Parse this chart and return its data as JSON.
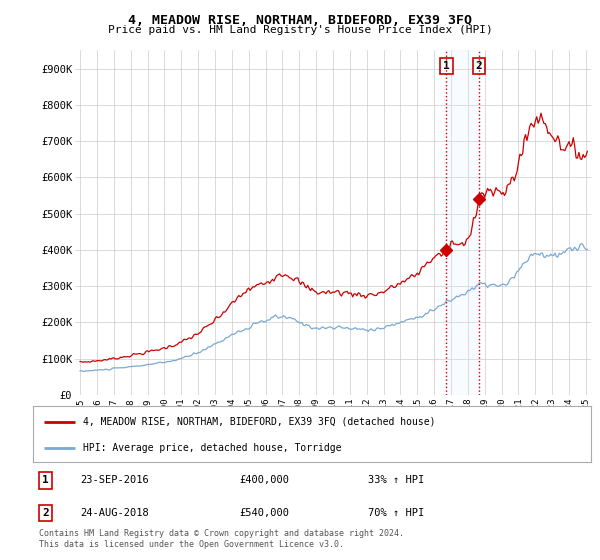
{
  "title": "4, MEADOW RISE, NORTHAM, BIDEFORD, EX39 3FQ",
  "subtitle": "Price paid vs. HM Land Registry's House Price Index (HPI)",
  "ylim": [
    0,
    950000
  ],
  "yticks": [
    0,
    100000,
    200000,
    300000,
    400000,
    500000,
    600000,
    700000,
    800000,
    900000
  ],
  "ytick_labels": [
    "£0",
    "£100K",
    "£200K",
    "£300K",
    "£400K",
    "£500K",
    "£600K",
    "£700K",
    "£800K",
    "£900K"
  ],
  "xlim_start": 1994.7,
  "xlim_end": 2025.3,
  "xticks": [
    1995,
    1996,
    1997,
    1998,
    1999,
    2000,
    2001,
    2002,
    2003,
    2004,
    2005,
    2006,
    2007,
    2008,
    2009,
    2010,
    2011,
    2012,
    2013,
    2014,
    2015,
    2016,
    2017,
    2018,
    2019,
    2020,
    2021,
    2022,
    2023,
    2024,
    2025
  ],
  "hpi_color": "#7aaad4",
  "price_color": "#cc0000",
  "vline_color": "#cc0000",
  "shade_color": "#ddeeff",
  "sale1_x": 2016.73,
  "sale1_y": 400000,
  "sale1_label": "1",
  "sale2_x": 2018.65,
  "sale2_y": 540000,
  "sale2_label": "2",
  "legend_address": "4, MEADOW RISE, NORTHAM, BIDEFORD, EX39 3FQ (detached house)",
  "legend_hpi": "HPI: Average price, detached house, Torridge",
  "table_data": [
    {
      "num": "1",
      "date": "23-SEP-2016",
      "price": "£400,000",
      "hpi": "33% ↑ HPI"
    },
    {
      "num": "2",
      "date": "24-AUG-2018",
      "price": "£540,000",
      "hpi": "70% ↑ HPI"
    }
  ],
  "footer": "Contains HM Land Registry data © Crown copyright and database right 2024.\nThis data is licensed under the Open Government Licence v3.0.",
  "background_color": "#ffffff",
  "grid_color": "#cccccc"
}
